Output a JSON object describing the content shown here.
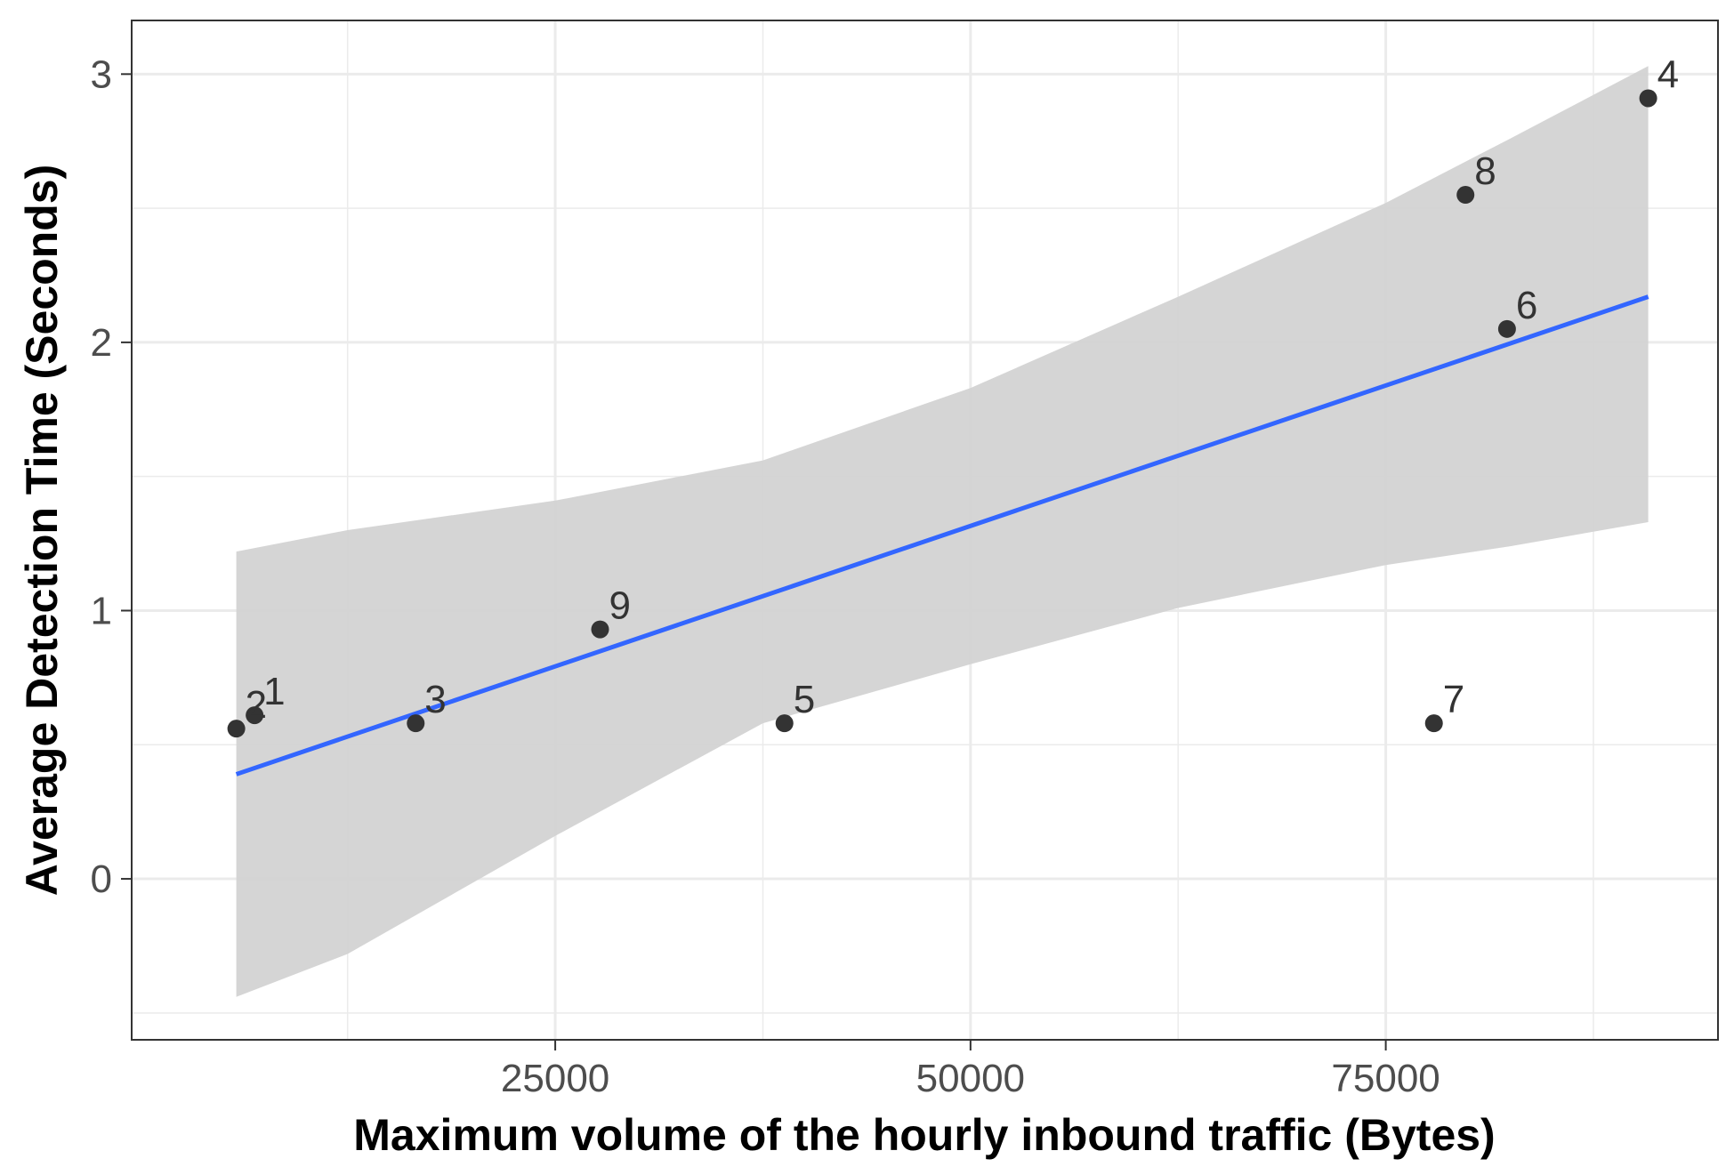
{
  "chart_data": {
    "type": "scatter",
    "title": "",
    "xlabel": "Maximum volume of the hourly inbound traffic (Bytes)",
    "ylabel": "Average Detection Time (Seconds)",
    "xlim": [
      -500,
      95000
    ],
    "ylim": [
      -0.6,
      3.2
    ],
    "x_ticks": [
      25000,
      50000,
      75000
    ],
    "x_tick_labels": [
      "25000",
      "50000",
      "75000"
    ],
    "x_minor_ticks": [
      12500,
      37500,
      62500,
      87500
    ],
    "y_ticks": [
      0,
      1,
      2,
      3
    ],
    "y_tick_labels": [
      "0",
      "1",
      "2",
      "3"
    ],
    "y_minor_ticks": [
      -0.5,
      0.5,
      1.5,
      2.5
    ],
    "grid": true,
    "legend": "none",
    "points": [
      {
        "label": "1",
        "x": 6900,
        "y": 0.61
      },
      {
        "label": "2",
        "x": 5800,
        "y": 0.56
      },
      {
        "label": "3",
        "x": 16600,
        "y": 0.58
      },
      {
        "label": "4",
        "x": 90800,
        "y": 2.91
      },
      {
        "label": "5",
        "x": 38800,
        "y": 0.58
      },
      {
        "label": "6",
        "x": 82300,
        "y": 2.05
      },
      {
        "label": "7",
        "x": 77900,
        "y": 0.58
      },
      {
        "label": "8",
        "x": 79800,
        "y": 2.55
      },
      {
        "label": "9",
        "x": 27700,
        "y": 0.93
      }
    ],
    "fit_line": {
      "x": [
        5800,
        90800
      ],
      "y": [
        0.39,
        2.17
      ]
    },
    "confidence_band": {
      "x": [
        5800,
        12500,
        25000,
        37500,
        50000,
        62500,
        75000,
        82500,
        90800
      ],
      "upper": [
        1.22,
        1.3,
        1.41,
        1.56,
        1.83,
        2.17,
        2.52,
        2.76,
        3.03
      ],
      "lower": [
        -0.44,
        -0.28,
        0.16,
        0.58,
        0.8,
        1.01,
        1.17,
        1.24,
        1.33
      ]
    },
    "colors": {
      "points": "#333333",
      "fit_line": "#3366ff",
      "band": "#d3d3d3",
      "grid": "#ebebeb",
      "border": "#333333"
    }
  }
}
